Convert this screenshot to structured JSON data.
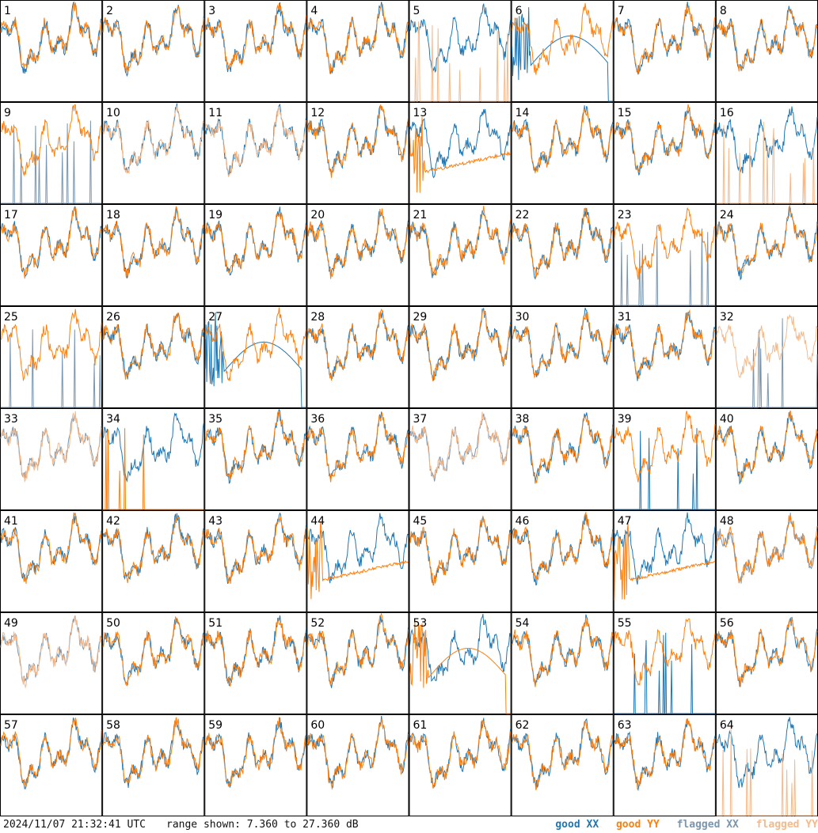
{
  "footer": {
    "timestamp": "2024/11/07 21:32:41 UTC",
    "range_text": "range shown: 7.360 to 27.360 dB"
  },
  "legend": {
    "good_xx": "good XX",
    "good_yy": "good YY",
    "flagged_xx": "flagged XX",
    "flagged_yy": "flagged YY"
  },
  "colors": {
    "good_xx": "#1f77b4",
    "good_yy": "#ff7f0e",
    "flagged_xx": "#7a96b0",
    "flagged_yy": "#f6b98a",
    "border": "#000000"
  },
  "chart_data": {
    "type": "line",
    "layout": "8x8 small multiples, one panel per input",
    "ylim": [
      7.36,
      27.36
    ],
    "yunit": "dB",
    "panel_labels": [
      "1",
      "2",
      "3",
      "4",
      "5",
      "6",
      "7",
      "8",
      "9",
      "10",
      "11",
      "12",
      "13",
      "14",
      "15",
      "16",
      "17",
      "18",
      "19",
      "20",
      "21",
      "22",
      "23",
      "24",
      "25",
      "26",
      "27",
      "28",
      "29",
      "30",
      "31",
      "32",
      "33",
      "34",
      "35",
      "36",
      "37",
      "38",
      "39",
      "40",
      "41",
      "42",
      "43",
      "44",
      "45",
      "46",
      "47",
      "48",
      "49",
      "50",
      "51",
      "52",
      "53",
      "54",
      "55",
      "56",
      "57",
      "58",
      "59",
      "60",
      "61",
      "62",
      "63",
      "64"
    ],
    "panel_styles": {
      "5": {
        "xx": "good",
        "yy": "flagged-sparse"
      },
      "6": {
        "xx": "good-bowl",
        "yy": "good"
      },
      "9": {
        "xx": "flagged-sparse",
        "yy": "good"
      },
      "10": {
        "xx": "good",
        "yy": "flagged"
      },
      "11": {
        "xx": "good",
        "yy": "flagged"
      },
      "13": {
        "xx": "good",
        "yy": "good-ramp"
      },
      "16": {
        "xx": "good",
        "yy": "flagged-sparse"
      },
      "23": {
        "xx": "flagged-sparse",
        "yy": "good"
      },
      "25": {
        "xx": "flagged-sparse",
        "yy": "good"
      },
      "27": {
        "xx": "good-bowl",
        "yy": "good"
      },
      "32": {
        "xx": "flagged-sparse",
        "yy": "flagged"
      },
      "33": {
        "xx": "flagged",
        "yy": "flagged"
      },
      "34": {
        "xx": "good",
        "yy": "good-sparse"
      },
      "37": {
        "xx": "flagged",
        "yy": "flagged"
      },
      "39": {
        "xx": "good-sparse",
        "yy": "good"
      },
      "44": {
        "xx": "good",
        "yy": "good-ramp"
      },
      "47": {
        "xx": "good",
        "yy": "good-ramp"
      },
      "48": {
        "xx": "flagged",
        "yy": "good"
      },
      "49": {
        "xx": "flagged",
        "yy": "flagged"
      },
      "53": {
        "xx": "good",
        "yy": "good-bowl"
      },
      "55": {
        "xx": "good-sparse",
        "yy": "good"
      },
      "64": {
        "xx": "good",
        "yy": "flagged-sparse"
      }
    },
    "xlabel": "",
    "ylabel": "",
    "grid": false,
    "legend_position": "bottom-right"
  }
}
